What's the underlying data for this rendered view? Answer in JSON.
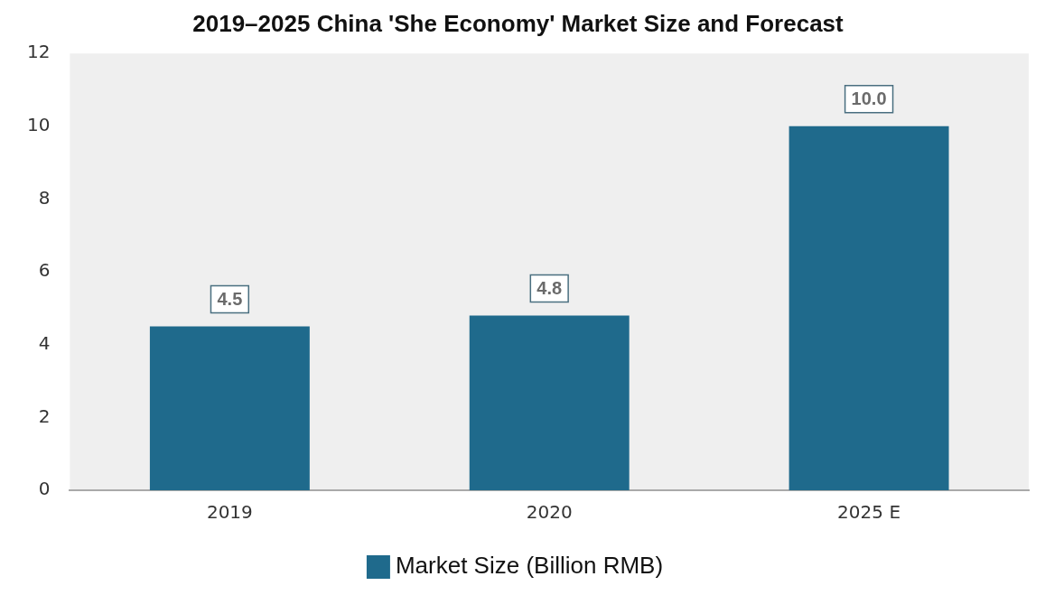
{
  "chart_data": {
    "type": "bar",
    "title": "2019–2025 China 'She Economy' Market Size and Forecast",
    "categories": [
      "2019",
      "2020",
      "2025 E"
    ],
    "series": [
      {
        "name": "Market Size (Billion RMB)",
        "color": "#1f6a8c",
        "values": [
          4.5,
          4.8,
          10.0
        ]
      }
    ],
    "value_labels": [
      "4.5",
      "4.8",
      "10.0"
    ],
    "ylim": [
      0,
      12
    ],
    "yticks": [
      0,
      2,
      4,
      6,
      8,
      10,
      12
    ],
    "grid": false,
    "legend": "bottom"
  }
}
